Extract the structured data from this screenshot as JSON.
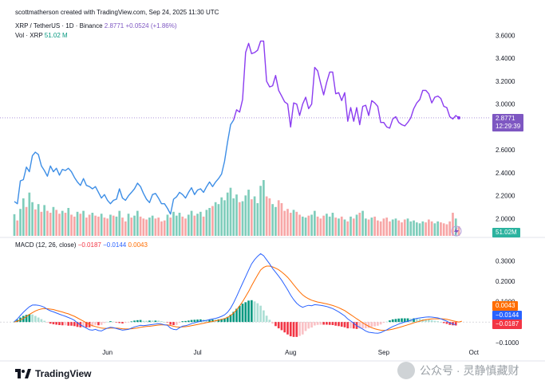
{
  "header": {
    "credit": "scottmatherson created with TradingView.com, Sep 24, 2025 11:30 UTC",
    "symbol": "XRP / TetherUS · 1D · Binance",
    "last": "2.8771",
    "change": "+0.0524 (+1.86%)",
    "vol_label": "Vol · XRP",
    "vol_value": "51.02 M",
    "macd_label": "MACD (12, 26, close)",
    "macd_hist": "−0.0187",
    "macd_line": "−0.0144",
    "macd_signal": "0.0043"
  },
  "price_tags": {
    "price": "2.8771",
    "countdown": "12:29:39",
    "volume": "51.02M"
  },
  "macd_tags": {
    "signal": "0.0043",
    "macd": "−0.0144",
    "hist": "−0.0187"
  },
  "colors": {
    "price_blue": "#3d8ee6",
    "price_purple": "#8b3df0",
    "vol_up": "#7fcdbb",
    "vol_down": "#f7a6a6",
    "macd_blue": "#2962ff",
    "signal_orange": "#ff6d00",
    "hist_up": "#089981",
    "hist_up_light": "#acdfd5",
    "hist_down": "#f23645",
    "hist_down_light": "#fac1c5"
  },
  "branding": {
    "logo_text": "TradingView",
    "watermark": "公众号 · 灵静慎藏财"
  },
  "chart_data": [
    {
      "type": "line",
      "title": "XRP / TetherUS · 1D · Binance",
      "x_ticks": [
        "Jun",
        "Jul",
        "Aug",
        "Sep",
        "Oct"
      ],
      "y_ticks": [
        "3.6000",
        "3.4000",
        "3.2000",
        "3.0000",
        "2.8000",
        "2.6000",
        "2.4000",
        "2.2000",
        "2.0000"
      ],
      "ylim": [
        1.85,
        3.7
      ],
      "grid": false,
      "series": [
        {
          "name": "XRP",
          "values": [
            2.15,
            2.13,
            2.33,
            2.34,
            2.45,
            2.41,
            2.55,
            2.58,
            2.56,
            2.46,
            2.42,
            2.37,
            2.46,
            2.41,
            2.44,
            2.38,
            2.43,
            2.42,
            2.44,
            2.41,
            2.36,
            2.32,
            2.29,
            2.35,
            2.29,
            2.28,
            2.26,
            2.28,
            2.23,
            2.18,
            2.21,
            2.16,
            2.13,
            2.16,
            2.17,
            2.26,
            2.18,
            2.16,
            2.2,
            2.23,
            2.26,
            2.31,
            2.28,
            2.22,
            2.17,
            2.14,
            2.21,
            2.22,
            2.18,
            2.13,
            2.13,
            2.09,
            2.04,
            2.17,
            2.19,
            2.23,
            2.21,
            2.18,
            2.23,
            2.27,
            2.21,
            2.25,
            2.26,
            2.23,
            2.28,
            2.32,
            2.28,
            2.32,
            2.35,
            2.39,
            2.5,
            2.67,
            2.82,
            2.86,
            2.95,
            2.93,
            3.04,
            3.45,
            3.53,
            3.44,
            3.45,
            3.47,
            3.55,
            3.55,
            3.2,
            3.15,
            3.16,
            3.25,
            3.12,
            3.07,
            3.02,
            3.0,
            2.8,
            3.01,
            3.0,
            2.9,
            3.0,
            3.06,
            2.96,
            3.0,
            3.32,
            3.29,
            3.18,
            3.08,
            3.19,
            3.28,
            3.28,
            3.09,
            3.1,
            3.03,
            3.1,
            2.85,
            2.97,
            2.85,
            2.97,
            2.82,
            2.98,
            2.99,
            2.9,
            3.03,
            3.01,
            2.98,
            2.84,
            2.84,
            2.8,
            2.79,
            2.87,
            2.89,
            2.84,
            2.82,
            2.81,
            2.84,
            2.88,
            2.96,
            3.01,
            3.04,
            3.12,
            3.12,
            3.09,
            3.01,
            3.06,
            3.07,
            3.05,
            2.98,
            2.97,
            2.89,
            2.87,
            2.9,
            2.88
          ],
          "purple_from_index": 73
        }
      ]
    },
    {
      "type": "bar",
      "title": "Vol · XRP",
      "series": [
        {
          "name": "Volume",
          "values": [
            45,
            32,
            56,
            78,
            60,
            90,
            70,
            55,
            66,
            50,
            64,
            52,
            48,
            60,
            54,
            46,
            52,
            48,
            58,
            44,
            40,
            50,
            46,
            52,
            38,
            44,
            48,
            42,
            40,
            46,
            38,
            36,
            44,
            42,
            40,
            52,
            38,
            30,
            46,
            38,
            42,
            52,
            40,
            36,
            34,
            38,
            42,
            36,
            38,
            30,
            32,
            44,
            38,
            50,
            42,
            48,
            40,
            36,
            44,
            52,
            42,
            46,
            50,
            40,
            54,
            58,
            62,
            70,
            66,
            80,
            74,
            90,
            100,
            78,
            86,
            70,
            72,
            84,
            96,
            76,
            82,
            68,
            104,
            116,
            82,
            78,
            66,
            60,
            74,
            68,
            52,
            56,
            48,
            54,
            50,
            44,
            40,
            38,
            42,
            44,
            52,
            40,
            36,
            42,
            46,
            40,
            48,
            38,
            36,
            40,
            34,
            30,
            40,
            36,
            44,
            48,
            52,
            36,
            34,
            38,
            40,
            32,
            30,
            36,
            38,
            30,
            34,
            36,
            32,
            28,
            34,
            36,
            30,
            32,
            28,
            26,
            30,
            28,
            34,
            30,
            26,
            30,
            28,
            26,
            24,
            30,
            48,
            36,
            20
          ],
          "up": [
            1,
            0,
            1,
            1,
            0,
            1,
            1,
            0,
            1,
            0,
            1,
            0,
            0,
            1,
            0,
            0,
            1,
            0,
            1,
            0,
            0,
            1,
            0,
            1,
            0,
            0,
            1,
            0,
            0,
            1,
            0,
            0,
            1,
            0,
            1,
            1,
            0,
            0,
            1,
            0,
            1,
            1,
            0,
            0,
            0,
            1,
            1,
            0,
            0,
            0,
            0,
            1,
            0,
            1,
            1,
            1,
            0,
            0,
            1,
            1,
            0,
            1,
            1,
            0,
            1,
            1,
            0,
            1,
            1,
            1,
            1,
            1,
            1,
            1,
            1,
            0,
            1,
            1,
            1,
            0,
            1,
            1,
            1,
            1,
            0,
            0,
            1,
            1,
            0,
            0,
            0,
            0,
            0,
            1,
            0,
            0,
            1,
            1,
            0,
            1,
            1,
            0,
            0,
            0,
            1,
            1,
            1,
            0,
            1,
            0,
            1,
            0,
            1,
            0,
            1,
            0,
            1,
            1,
            0,
            1,
            0,
            0,
            0,
            0,
            0,
            0,
            1,
            1,
            0,
            0,
            0,
            1,
            1,
            1,
            1,
            1,
            1,
            0,
            0,
            0,
            1,
            1,
            0,
            0,
            0,
            0,
            0,
            1,
            0
          ]
        }
      ]
    },
    {
      "type": "line",
      "title": "MACD (12, 26, close)",
      "y_ticks": [
        "0.3000",
        "0.2000",
        "0.1000",
        "−0.1000"
      ],
      "ylim": [
        -0.14,
        0.36
      ],
      "series": [
        {
          "name": "MACD",
          "values": [
            0.002,
            0.015,
            0.032,
            0.048,
            0.062,
            0.075,
            0.083,
            0.084,
            0.082,
            0.078,
            0.072,
            0.062,
            0.055,
            0.05,
            0.044,
            0.038,
            0.033,
            0.028,
            0.022,
            0.016,
            0.008,
            -0.004,
            -0.014,
            -0.022,
            -0.03,
            -0.038,
            -0.04,
            -0.036,
            -0.042,
            -0.044,
            -0.036,
            -0.03,
            -0.026,
            -0.028,
            -0.032,
            -0.036,
            -0.04,
            -0.038,
            -0.036,
            -0.03,
            -0.024,
            -0.02,
            -0.016,
            -0.018,
            -0.016,
            -0.014,
            -0.012,
            -0.01,
            -0.008,
            -0.01,
            -0.014,
            -0.016,
            -0.03,
            -0.036,
            -0.038,
            -0.028,
            -0.02,
            -0.018,
            -0.014,
            -0.008,
            -0.004,
            0.0,
            0.004,
            0.006,
            0.008,
            0.012,
            0.015,
            0.018,
            0.022,
            0.028,
            0.035,
            0.048,
            0.068,
            0.094,
            0.125,
            0.158,
            0.19,
            0.222,
            0.255,
            0.285,
            0.306,
            0.322,
            0.335,
            0.325,
            0.305,
            0.285,
            0.262,
            0.244,
            0.225,
            0.205,
            0.182,
            0.158,
            0.132,
            0.11,
            0.092,
            0.08,
            0.072,
            0.078,
            0.082,
            0.08,
            0.085,
            0.084,
            0.082,
            0.079,
            0.076,
            0.071,
            0.066,
            0.058,
            0.05,
            0.04,
            0.03,
            0.015,
            0.005,
            -0.006,
            -0.018,
            -0.026,
            -0.035,
            -0.044,
            -0.05,
            -0.052,
            -0.054,
            -0.055,
            -0.052,
            -0.045,
            -0.038,
            -0.03,
            -0.022,
            -0.016,
            -0.01,
            -0.005,
            0.0,
            0.004,
            0.008,
            0.014,
            0.018,
            0.02,
            0.022,
            0.024,
            0.025,
            0.024,
            0.022,
            0.02,
            0.016,
            0.01,
            0.004,
            -0.004,
            -0.01,
            -0.014
          ]
        },
        {
          "name": "Signal",
          "values": [
            0.0,
            0.004,
            0.01,
            0.018,
            0.027,
            0.037,
            0.046,
            0.054,
            0.06,
            0.064,
            0.066,
            0.065,
            0.063,
            0.061,
            0.057,
            0.053,
            0.049,
            0.044,
            0.04,
            0.034,
            0.028,
            0.02,
            0.012,
            0.004,
            -0.004,
            -0.012,
            -0.018,
            -0.022,
            -0.026,
            -0.03,
            -0.031,
            -0.031,
            -0.03,
            -0.03,
            -0.03,
            -0.031,
            -0.033,
            -0.034,
            -0.034,
            -0.033,
            -0.031,
            -0.029,
            -0.026,
            -0.024,
            -0.022,
            -0.021,
            -0.019,
            -0.017,
            -0.015,
            -0.014,
            -0.014,
            -0.014,
            -0.017,
            -0.021,
            -0.024,
            -0.025,
            -0.024,
            -0.023,
            -0.021,
            -0.018,
            -0.015,
            -0.012,
            -0.009,
            -0.006,
            -0.003,
            0.0,
            0.003,
            0.006,
            0.009,
            0.013,
            0.017,
            0.023,
            0.032,
            0.044,
            0.06,
            0.079,
            0.1,
            0.125,
            0.15,
            0.178,
            0.205,
            0.23,
            0.255,
            0.268,
            0.274,
            0.274,
            0.27,
            0.264,
            0.256,
            0.245,
            0.233,
            0.219,
            0.202,
            0.183,
            0.165,
            0.148,
            0.133,
            0.122,
            0.114,
            0.107,
            0.102,
            0.098,
            0.095,
            0.092,
            0.089,
            0.085,
            0.081,
            0.076,
            0.07,
            0.063,
            0.056,
            0.046,
            0.036,
            0.026,
            0.016,
            0.006,
            -0.004,
            -0.013,
            -0.021,
            -0.028,
            -0.033,
            -0.037,
            -0.04,
            -0.041,
            -0.04,
            -0.038,
            -0.035,
            -0.031,
            -0.027,
            -0.023,
            -0.018,
            -0.014,
            -0.009,
            -0.004,
            0.0,
            0.004,
            0.008,
            0.011,
            0.013,
            0.015,
            0.016,
            0.016,
            0.016,
            0.015,
            0.013,
            0.01,
            0.006,
            0.003,
            0.0,
            0.004
          ]
        }
      ]
    }
  ]
}
